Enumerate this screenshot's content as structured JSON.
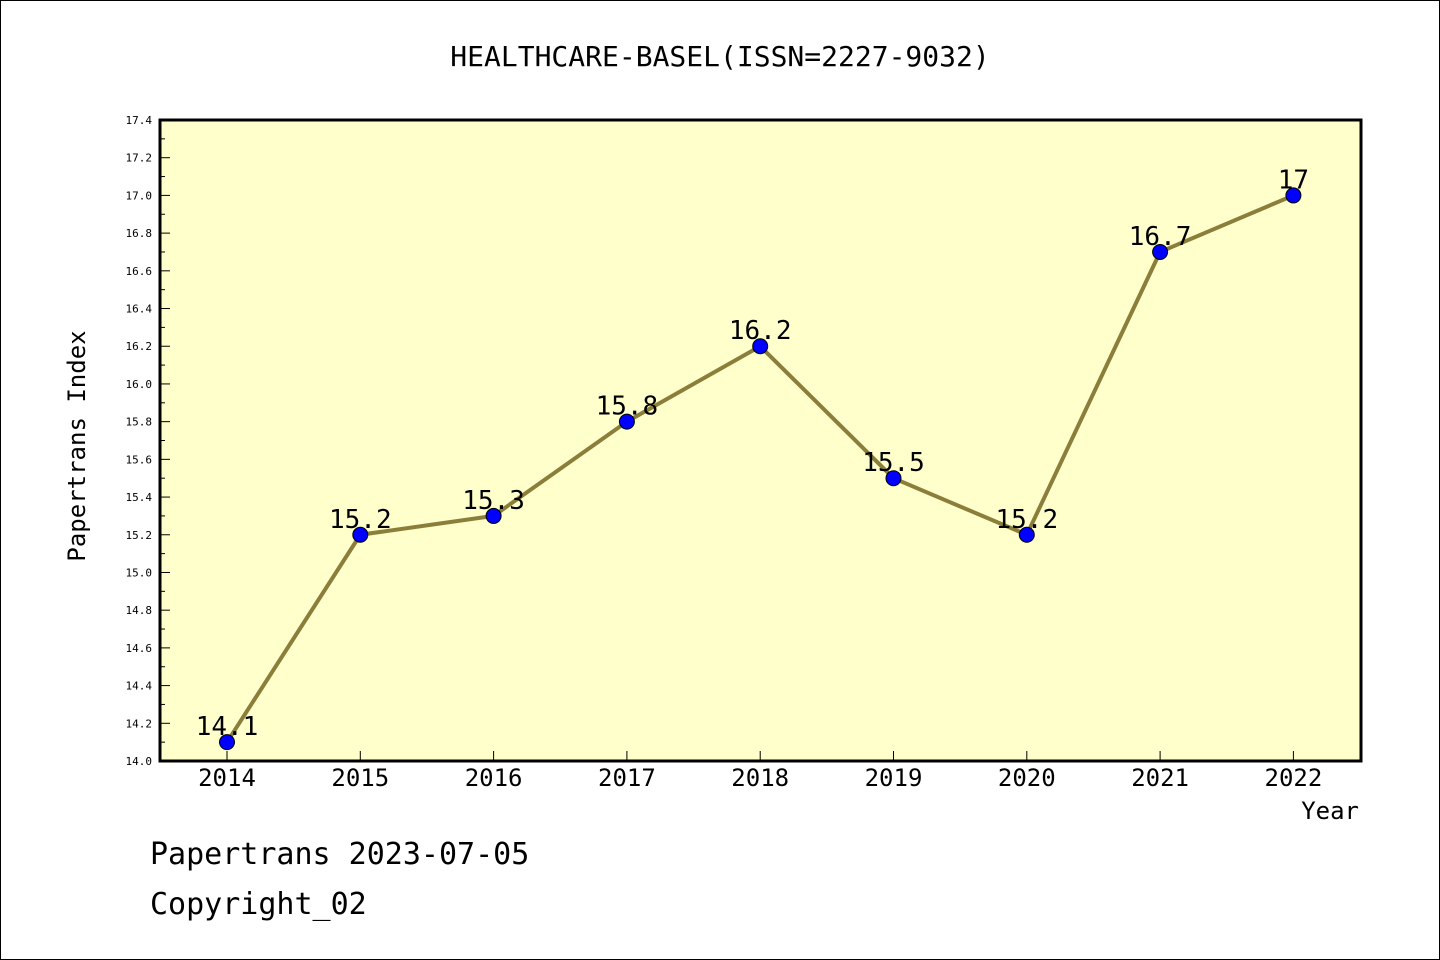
{
  "chart_data": {
    "type": "line",
    "title": "HEALTHCARE-BASEL(ISSN=2227-9032)",
    "xlabel": "Year",
    "ylabel": "Papertrans Index",
    "categories": [
      "2014",
      "2015",
      "2016",
      "2017",
      "2018",
      "2019",
      "2020",
      "2021",
      "2022"
    ],
    "series": [
      {
        "values": [
          14.1,
          15.2,
          15.3,
          15.8,
          16.2,
          15.5,
          15.2,
          16.7,
          17
        ],
        "data_labels": [
          "14.1",
          "15.2",
          "15.3",
          "15.8",
          "16.2",
          "15.5",
          "15.2",
          "16.7",
          "17"
        ]
      }
    ],
    "ylim": [
      14.0,
      17.4
    ],
    "yticks": [
      "14.0",
      "14.2",
      "14.4",
      "14.6",
      "14.8",
      "15.0",
      "15.2",
      "15.4",
      "15.6",
      "15.8",
      "16.0",
      "16.2",
      "16.4",
      "16.6",
      "16.8",
      "17.0",
      "17.2",
      "17.4"
    ],
    "grid": false,
    "legend": "none",
    "colors": {
      "plot_background": "#ffffcc",
      "line": "#8b7d3a",
      "marker": "#0000ff"
    }
  },
  "footer": {
    "line1": "Papertrans 2023-07-05",
    "line2": "Copyright_02"
  }
}
